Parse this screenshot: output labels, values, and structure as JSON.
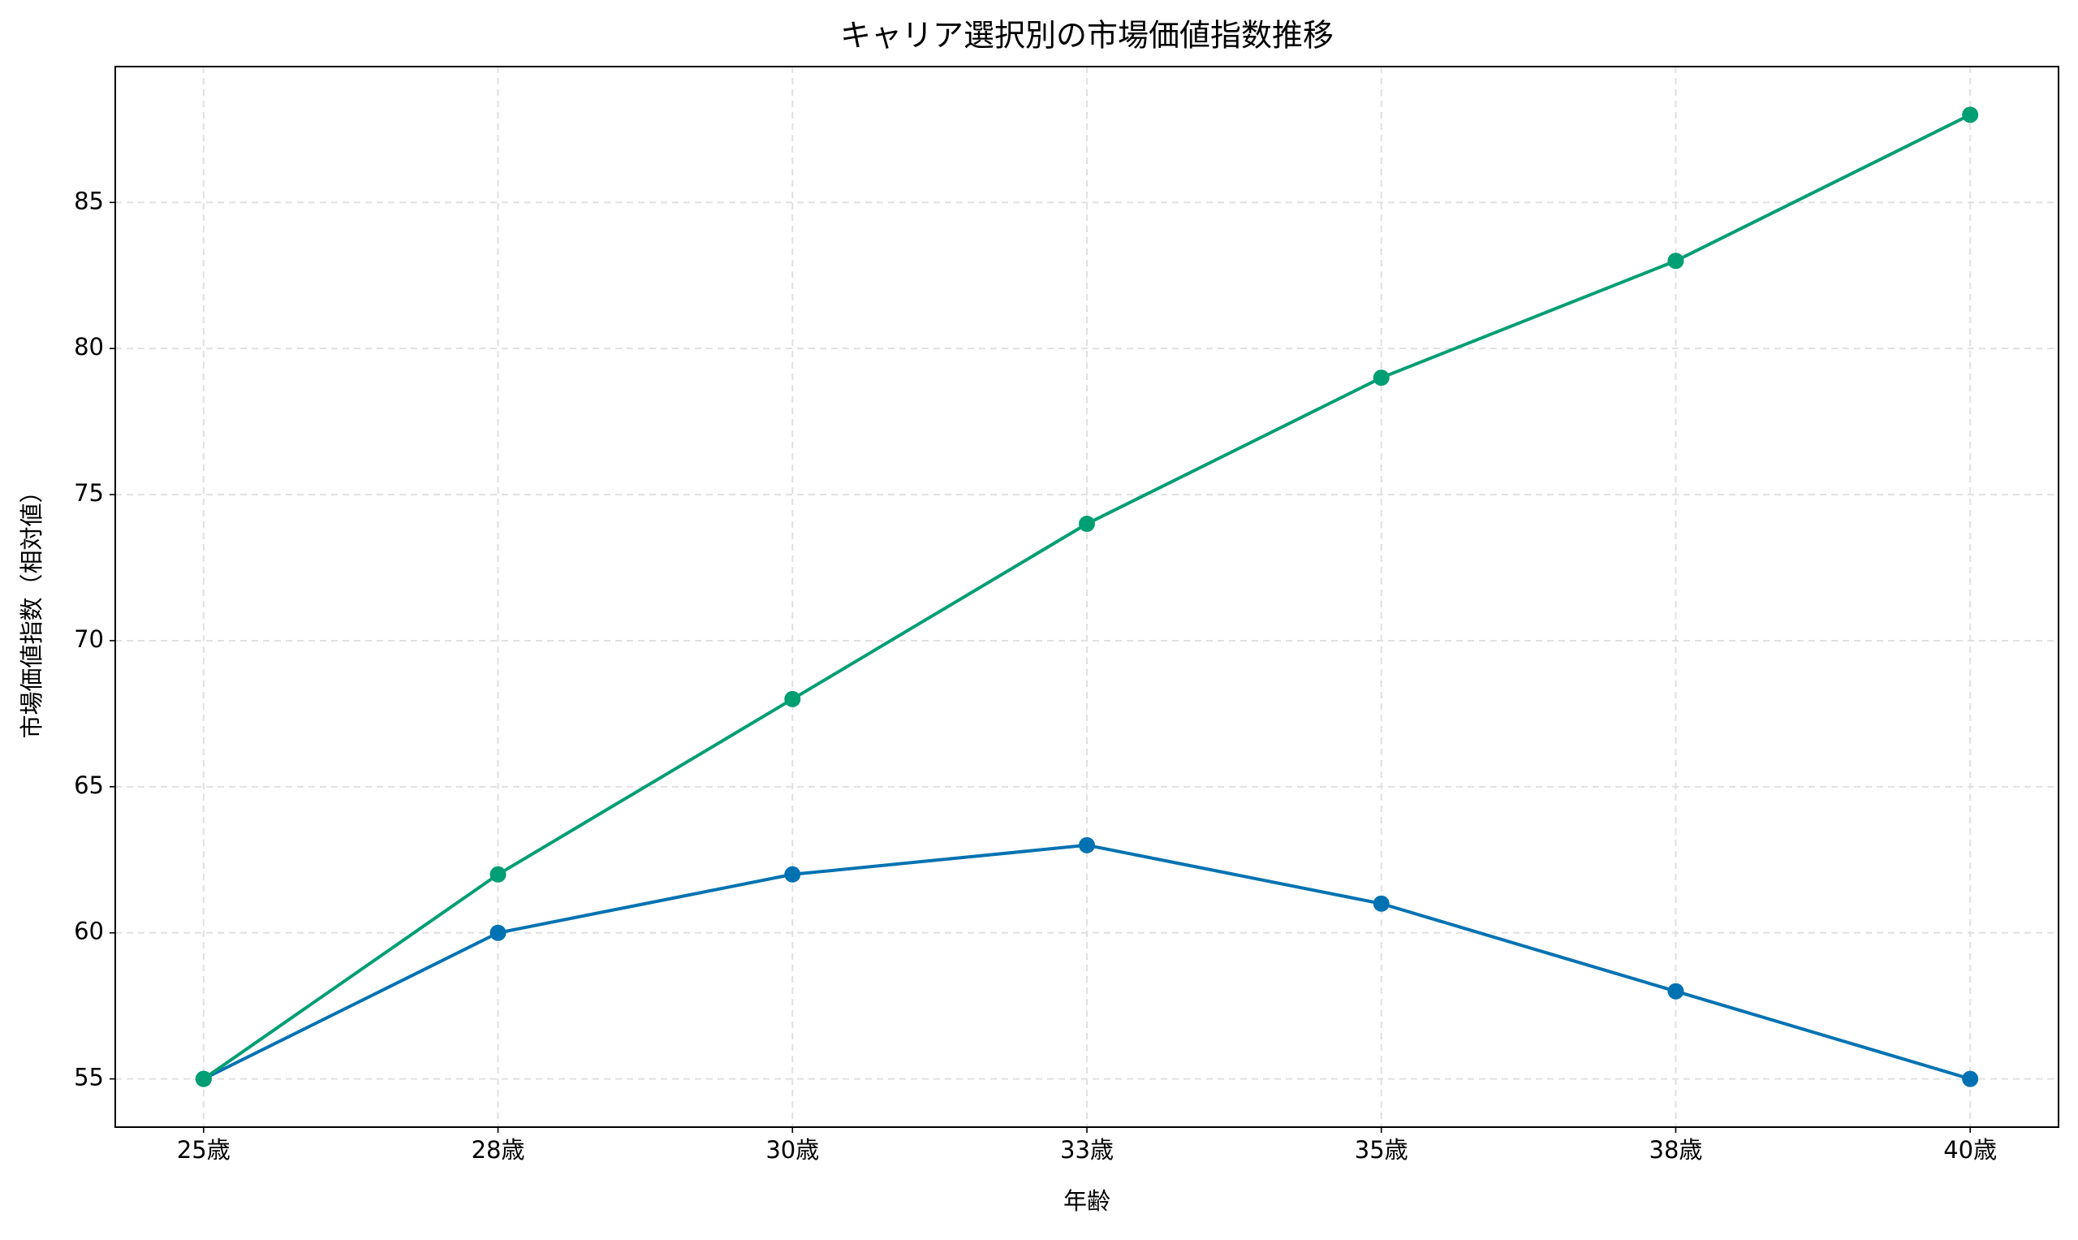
{
  "chart_data": {
    "type": "line",
    "title": "キャリア選択別の市場価値指数推移",
    "x_label": "年齢",
    "y_label": "市場価値指数（相対値）",
    "categories": [
      "25歳",
      "28歳",
      "30歳",
      "33歳",
      "35歳",
      "38歳",
      "40歳"
    ],
    "series": [
      {
        "color": "#0072b2",
        "values": [
          55,
          60,
          62,
          63,
          61,
          58,
          55
        ]
      },
      {
        "color": "#009e73",
        "values": [
          55,
          62,
          68,
          74,
          79,
          83,
          88
        ]
      }
    ],
    "ylim": [
      53.35,
      89.65
    ],
    "yticks": [
      55,
      60,
      65,
      70,
      75,
      80,
      85
    ],
    "grid": true
  }
}
